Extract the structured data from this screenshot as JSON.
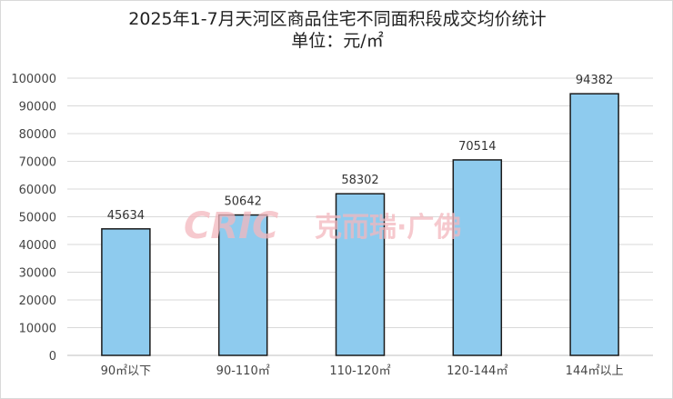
{
  "chart_data": {
    "type": "bar",
    "title": "2025年1-7月天河区商品住宅不同面积段成交均价统计",
    "subtitle": "单位：元/㎡",
    "categories": [
      "90㎡以下",
      "90-110㎡",
      "110-120㎡",
      "120-144㎡",
      "144㎡以上"
    ],
    "values": [
      45634,
      50642,
      58302,
      70514,
      94382
    ],
    "ylim": [
      0,
      100000
    ],
    "yticks": [
      0,
      10000,
      20000,
      30000,
      40000,
      50000,
      60000,
      70000,
      80000,
      90000,
      100000
    ],
    "grid": true,
    "legend": "none",
    "bar_color": "#8ecbee",
    "bar_border_color": "#1a1a1a"
  },
  "watermark": {
    "logo": "CRIC",
    "text": "克而瑞·广佛",
    "color": "#f3b8be"
  }
}
